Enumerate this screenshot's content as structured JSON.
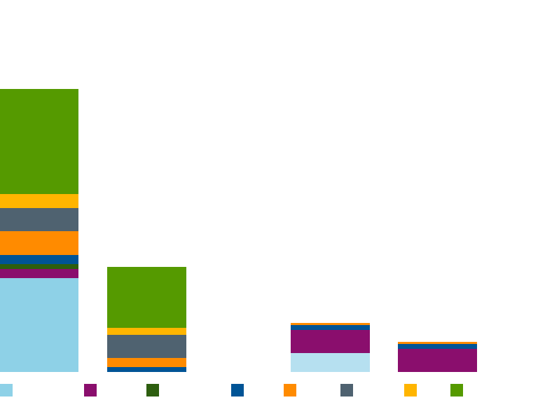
{
  "chart_data": {
    "type": "bar",
    "stacked": true,
    "title": "",
    "xlabel": "",
    "ylabel": "",
    "categories": [
      "",
      "",
      "",
      ""
    ],
    "ylim": [
      0,
      405
    ],
    "grid": false,
    "legend_position": "bottom",
    "series": [
      {
        "name": "",
        "color": "#8ed1e7",
        "values": [
          134,
          0,
          27,
          0
        ]
      },
      {
        "name": "",
        "color": "#8a0e6d",
        "values": [
          13,
          0,
          33,
          33
        ]
      },
      {
        "name": "",
        "color": "#2d5e0f",
        "values": [
          7,
          0,
          0,
          0
        ]
      },
      {
        "name": "",
        "color": "#005496",
        "values": [
          13,
          7,
          7,
          7
        ]
      },
      {
        "name": "",
        "color": "#ff8b00",
        "values": [
          34,
          13,
          3,
          3
        ]
      },
      {
        "name": "",
        "color": "#4f6270",
        "values": [
          33,
          33,
          0,
          0
        ]
      },
      {
        "name": "",
        "color": "#ffb500",
        "values": [
          20,
          10,
          0,
          0
        ]
      },
      {
        "name": "",
        "color": "#559a00",
        "values": [
          150,
          87,
          0,
          0
        ]
      }
    ],
    "bar_fill_colors": [
      null,
      null,
      {
        "0": "#b6e0f0"
      },
      null
    ]
  }
}
